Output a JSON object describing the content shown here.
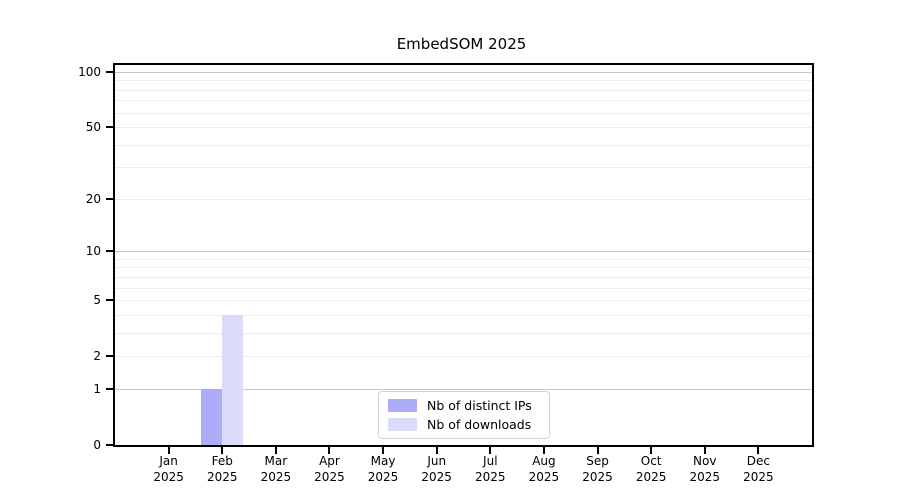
{
  "title": "EmbedSOM 2025",
  "legend": {
    "items": [
      {
        "label": "Nb of distinct IPs",
        "color": "#adacf8"
      },
      {
        "label": "Nb of downloads",
        "color": "#dcdbf9"
      }
    ]
  },
  "chart_data": {
    "type": "bar",
    "title": "EmbedSOM 2025",
    "x_categories": [
      {
        "month": "Jan",
        "year": "2025"
      },
      {
        "month": "Feb",
        "year": "2025"
      },
      {
        "month": "Mar",
        "year": "2025"
      },
      {
        "month": "Apr",
        "year": "2025"
      },
      {
        "month": "May",
        "year": "2025"
      },
      {
        "month": "Jun",
        "year": "2025"
      },
      {
        "month": "Jul",
        "year": "2025"
      },
      {
        "month": "Aug",
        "year": "2025"
      },
      {
        "month": "Sep",
        "year": "2025"
      },
      {
        "month": "Oct",
        "year": "2025"
      },
      {
        "month": "Nov",
        "year": "2025"
      },
      {
        "month": "Dec",
        "year": "2025"
      }
    ],
    "series": [
      {
        "name": "Nb of distinct IPs",
        "color": "#adacf8",
        "values": [
          0,
          1,
          0,
          0,
          0,
          0,
          0,
          0,
          0,
          0,
          0,
          0
        ]
      },
      {
        "name": "Nb of downloads",
        "color": "#dcdbf9",
        "values": [
          0,
          4,
          0,
          0,
          0,
          0,
          0,
          0,
          0,
          0,
          0,
          0
        ]
      }
    ],
    "y_scale": "log1p",
    "ylim": [
      0,
      110
    ],
    "y_ticks": [
      0,
      1,
      2,
      5,
      10,
      20,
      50,
      100
    ],
    "y_minor_gridlines": [
      2,
      3,
      4,
      5,
      6,
      7,
      8,
      9,
      20,
      30,
      40,
      50,
      60,
      70,
      80,
      90
    ],
    "y_major_gridlines": [
      1,
      10,
      100
    ],
    "grid": true,
    "legend_position": "lower center",
    "xlabel": "",
    "ylabel": ""
  }
}
